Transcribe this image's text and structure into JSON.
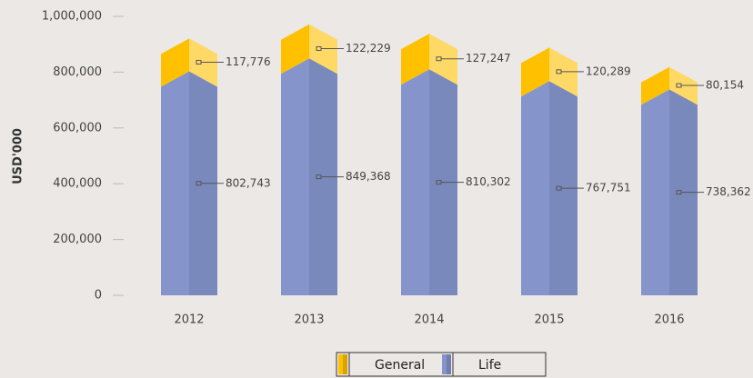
{
  "chart_data": {
    "type": "bar",
    "stacked": true,
    "y_axis_label": "USD'000",
    "categories": [
      "2012",
      "2013",
      "2014",
      "2015",
      "2016"
    ],
    "series": [
      {
        "name": "Life",
        "color": "#8595cc",
        "values": [
          802743,
          849368,
          810302,
          767751,
          738362
        ],
        "value_labels": [
          "802,743",
          "849,368",
          "810,302",
          "767,751",
          "738,362"
        ]
      },
      {
        "name": "General",
        "color": "#ffc000",
        "values": [
          117776,
          122229,
          127247,
          120289,
          80154
        ],
        "value_labels": [
          "117,776",
          "122,229",
          "127,247",
          "120,289",
          "80,154"
        ]
      }
    ],
    "ylim": [
      0,
      1000000
    ],
    "yticks": [
      0,
      {
        "value": 200000,
        "label": "200,000"
      },
      {
        "value": 400000,
        "label": "400,000"
      },
      {
        "value": 600000,
        "label": "600,000"
      },
      {
        "value": 800000,
        "label": "800,000"
      },
      {
        "value": 1000000,
        "label": "1,000,000"
      }
    ],
    "legend_order": [
      "General",
      "Life"
    ]
  }
}
